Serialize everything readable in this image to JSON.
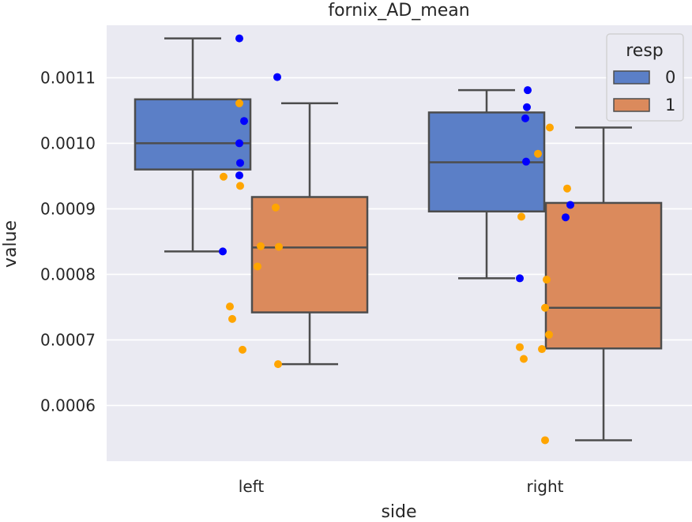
{
  "chart_data": {
    "type": "box",
    "title": "fornix_AD_mean",
    "xlabel": "side",
    "ylabel": "value",
    "categories": [
      "left",
      "right"
    ],
    "ylim": [
      0.000515,
      0.00118
    ],
    "y_ticks": [
      0.0006,
      0.0007,
      0.0008,
      0.0009,
      0.001,
      0.0011
    ],
    "y_tick_labels": [
      "0.0006",
      "0.0007",
      "0.0008",
      "0.0009",
      "0.0010",
      "0.0011"
    ],
    "grid": true,
    "legend": {
      "title": "resp",
      "placement": "top-right",
      "entries": [
        {
          "label": "0",
          "color": "#5b7fc7"
        },
        {
          "label": "1",
          "color": "#db8a5c"
        }
      ]
    },
    "colors": {
      "plot_background": "#eaeaf2",
      "grid": "#ffffff",
      "box_line": "#4d4d4d",
      "point_resp0": "#0000ff",
      "point_resp1": "#ffa500"
    },
    "boxes": [
      {
        "category": "left",
        "group": "0",
        "whisker_low": 0.000835,
        "q1": 0.00096,
        "median": 0.001,
        "q3": 0.001067,
        "whisker_high": 0.00116
      },
      {
        "category": "left",
        "group": "1",
        "whisker_low": 0.000663,
        "q1": 0.000742,
        "median": 0.000841,
        "q3": 0.000918,
        "whisker_high": 0.001061
      },
      {
        "category": "right",
        "group": "0",
        "whisker_low": 0.000794,
        "q1": 0.000896,
        "median": 0.000971,
        "q3": 0.001047,
        "whisker_high": 0.001081
      },
      {
        "category": "right",
        "group": "1",
        "whisker_low": 0.000547,
        "q1": 0.000687,
        "median": 0.000749,
        "q3": 0.000909,
        "whisker_high": 0.001024
      }
    ],
    "points": [
      {
        "category": "left",
        "group": "0",
        "values": [
          0.00116,
          0.001101,
          0.001034,
          0.001,
          0.00097,
          0.000951,
          0.000835
        ]
      },
      {
        "category": "left",
        "group": "1",
        "values": [
          0.001061,
          0.000949,
          0.000935,
          0.000902,
          0.000843,
          0.000842,
          0.000812,
          0.000751,
          0.000732,
          0.000685,
          0.000663
        ]
      },
      {
        "category": "right",
        "group": "0",
        "values": [
          0.001081,
          0.001055,
          0.001038,
          0.000972,
          0.000906,
          0.000887,
          0.000794
        ]
      },
      {
        "category": "right",
        "group": "1",
        "values": [
          0.001024,
          0.000984,
          0.000931,
          0.000888,
          0.000792,
          0.000749,
          0.000708,
          0.000689,
          0.000686,
          0.000671,
          0.000547
        ]
      }
    ]
  }
}
